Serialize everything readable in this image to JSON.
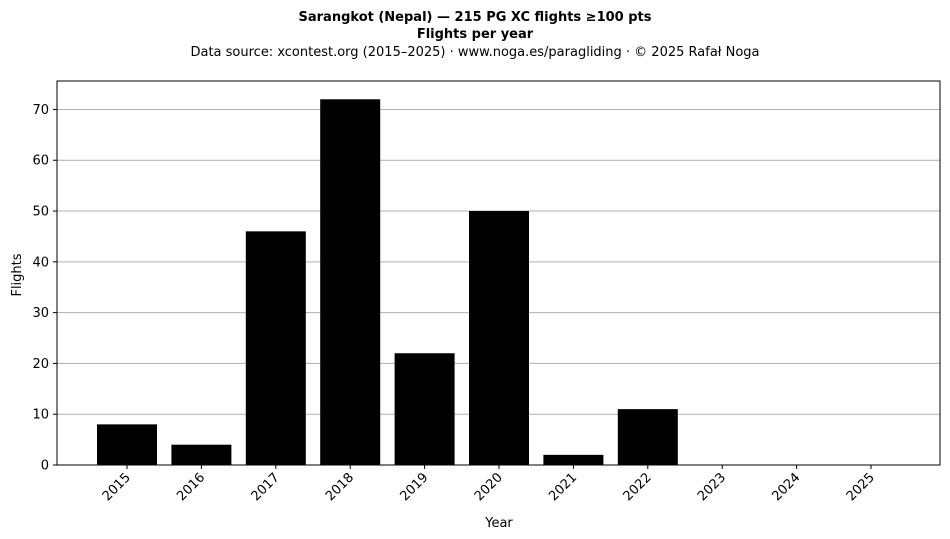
{
  "chart_data": {
    "type": "bar",
    "title": "Sarangkot (Nepal)  —  215 PG XC flights ≥100 pts",
    "subtitle": "Flights per year",
    "source": "Data source: xcontest.org (2015–2025)  ·  www.noga.es/paragliding  ·  © 2025 Rafał Noga",
    "xlabel": "Year",
    "ylabel": "Flights",
    "categories": [
      "2015",
      "2016",
      "2017",
      "2018",
      "2019",
      "2020",
      "2021",
      "2022",
      "2023",
      "2024",
      "2025"
    ],
    "values": [
      8,
      4,
      46,
      72,
      22,
      50,
      2,
      11,
      0,
      0,
      0
    ],
    "yticks": [
      0,
      10,
      20,
      30,
      40,
      50,
      60,
      70
    ],
    "ylim": [
      0,
      75.6
    ],
    "grid": "y",
    "bar_color": "#000000",
    "grid_color": "#b0b0b0"
  }
}
